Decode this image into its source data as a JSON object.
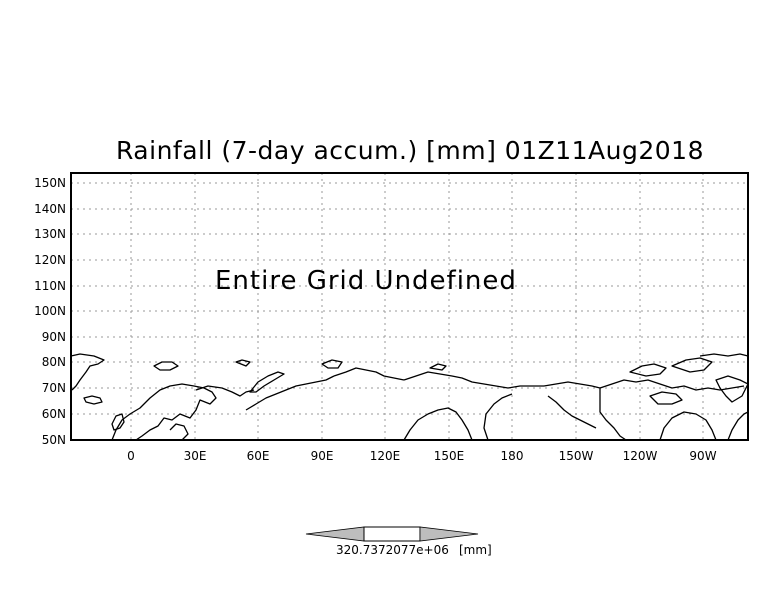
{
  "title": "Rainfall (7-day accum.) [mm] 01Z11Aug2018",
  "overlay_message": "Entire Grid Undefined",
  "lat_labels": [
    "150N",
    "140N",
    "130N",
    "120N",
    "110N",
    "100N",
    "90N",
    "80N",
    "70N",
    "60N",
    "50N"
  ],
  "lon_labels": [
    "0",
    "30E",
    "60E",
    "90E",
    "120E",
    "150E",
    "180",
    "150W",
    "120W",
    "90W"
  ],
  "colorbar": {
    "label_value": "320.7372077e+06",
    "label_unit": "[mm]",
    "fill_color": "#bdbdbd"
  },
  "colors": {
    "coastline": "#000000",
    "grid": "#9a9a9a",
    "background": "#ffffff"
  }
}
